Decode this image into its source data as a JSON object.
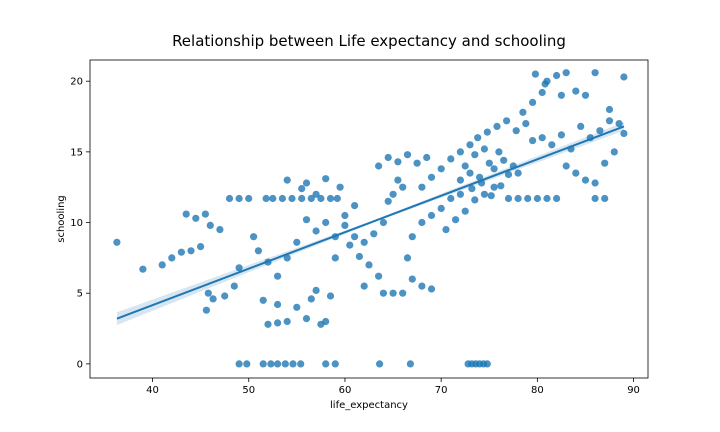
{
  "chart_data": {
    "type": "scatter",
    "title": "Relationship between Life expectancy and schooling",
    "xlabel": "life_expectancy",
    "ylabel": "schooling",
    "xlim": [
      33.5,
      91.5
    ],
    "ylim": [
      -1.0,
      21.5
    ],
    "xticks": [
      40,
      50,
      60,
      70,
      80,
      90
    ],
    "yticks": [
      0,
      5,
      10,
      15,
      20
    ],
    "grid": false,
    "legend": "none",
    "point_color": "#1f77b4",
    "point_opacity": 0.8,
    "regression": {
      "x": [
        36.3,
        89.0
      ],
      "y": [
        3.2,
        16.8
      ],
      "ci_halfwidth_start": 0.45,
      "ci_halfwidth_mid": 0.08,
      "ci_halfwidth_end": 0.3,
      "color": "#1f77b4"
    },
    "points": [
      [
        36.3,
        8.6
      ],
      [
        39.0,
        6.7
      ],
      [
        41.0,
        7.0
      ],
      [
        42.0,
        7.5
      ],
      [
        43.0,
        7.9
      ],
      [
        44.0,
        8.0
      ],
      [
        43.5,
        10.6
      ],
      [
        44.5,
        10.3
      ],
      [
        45.5,
        10.6
      ],
      [
        46.0,
        9.8
      ],
      [
        47.0,
        9.5
      ],
      [
        45.0,
        8.3
      ],
      [
        45.8,
        5.0
      ],
      [
        45.6,
        3.8
      ],
      [
        46.3,
        4.6
      ],
      [
        47.5,
        4.8
      ],
      [
        48.5,
        5.5
      ],
      [
        49.0,
        6.8
      ],
      [
        48.0,
        11.7
      ],
      [
        49.0,
        11.7
      ],
      [
        50.0,
        11.7
      ],
      [
        51.8,
        11.7
      ],
      [
        52.5,
        11.7
      ],
      [
        53.5,
        11.7
      ],
      [
        54.5,
        11.7
      ],
      [
        55.5,
        11.7
      ],
      [
        56.5,
        11.7
      ],
      [
        57.5,
        11.7
      ],
      [
        58.5,
        11.7
      ],
      [
        59.2,
        11.7
      ],
      [
        50.5,
        9.0
      ],
      [
        51.0,
        8.0
      ],
      [
        52.0,
        7.2
      ],
      [
        53.0,
        6.2
      ],
      [
        54.0,
        7.5
      ],
      [
        55.0,
        8.6
      ],
      [
        52.0,
        2.8
      ],
      [
        53.0,
        2.9
      ],
      [
        54.0,
        3.0
      ],
      [
        56.0,
        3.2
      ],
      [
        57.5,
        2.8
      ],
      [
        58.0,
        3.0
      ],
      [
        51.5,
        4.5
      ],
      [
        53.0,
        4.2
      ],
      [
        55.0,
        4.0
      ],
      [
        56.5,
        4.6
      ],
      [
        57.0,
        5.2
      ],
      [
        58.5,
        4.8
      ],
      [
        54.0,
        13.0
      ],
      [
        56.0,
        12.8
      ],
      [
        58.0,
        13.1
      ],
      [
        59.5,
        12.5
      ],
      [
        57.0,
        12.0
      ],
      [
        55.5,
        12.4
      ],
      [
        56.0,
        10.2
      ],
      [
        57.0,
        9.4
      ],
      [
        58.0,
        10.0
      ],
      [
        59.0,
        9.0
      ],
      [
        60.0,
        10.5
      ],
      [
        61.0,
        11.2
      ],
      [
        60.5,
        8.4
      ],
      [
        61.5,
        7.6
      ],
      [
        62.5,
        7.0
      ],
      [
        63.5,
        6.2
      ],
      [
        62.0,
        5.5
      ],
      [
        64.0,
        5.0
      ],
      [
        63.0,
        9.2
      ],
      [
        64.0,
        10.0
      ],
      [
        64.5,
        11.5
      ],
      [
        65.0,
        12.0
      ],
      [
        65.5,
        13.0
      ],
      [
        66.0,
        12.5
      ],
      [
        63.5,
        14.0
      ],
      [
        64.5,
        14.6
      ],
      [
        65.5,
        14.3
      ],
      [
        66.5,
        14.8
      ],
      [
        67.5,
        14.2
      ],
      [
        68.5,
        14.6
      ],
      [
        65.0,
        5.0
      ],
      [
        66.0,
        5.0
      ],
      [
        67.0,
        6.0
      ],
      [
        68.0,
        5.5
      ],
      [
        69.0,
        5.3
      ],
      [
        66.5,
        7.5
      ],
      [
        67.0,
        9.0
      ],
      [
        68.0,
        10.0
      ],
      [
        69.0,
        10.5
      ],
      [
        70.0,
        11.0
      ],
      [
        71.0,
        11.7
      ],
      [
        72.0,
        12.0
      ],
      [
        68.0,
        12.5
      ],
      [
        69.0,
        13.2
      ],
      [
        70.0,
        13.8
      ],
      [
        71.0,
        14.5
      ],
      [
        72.0,
        15.0
      ],
      [
        73.0,
        15.5
      ],
      [
        70.5,
        9.5
      ],
      [
        71.5,
        10.2
      ],
      [
        72.5,
        10.8
      ],
      [
        73.5,
        11.6
      ],
      [
        74.5,
        12.0
      ],
      [
        75.5,
        12.5
      ],
      [
        72.0,
        13.0
      ],
      [
        72.5,
        14.0
      ],
      [
        73.0,
        13.5
      ],
      [
        73.5,
        14.8
      ],
      [
        74.0,
        13.2
      ],
      [
        74.5,
        15.2
      ],
      [
        75.0,
        14.2
      ],
      [
        75.5,
        13.8
      ],
      [
        76.0,
        15.0
      ],
      [
        76.5,
        14.4
      ],
      [
        73.2,
        12.4
      ],
      [
        74.2,
        12.8
      ],
      [
        75.2,
        11.9
      ],
      [
        76.2,
        12.6
      ],
      [
        77.0,
        13.4
      ],
      [
        77.5,
        14.0
      ],
      [
        78.0,
        13.5
      ],
      [
        73.8,
        16.0
      ],
      [
        74.8,
        16.4
      ],
      [
        75.8,
        16.8
      ],
      [
        76.8,
        17.2
      ],
      [
        77.8,
        16.5
      ],
      [
        78.8,
        17.0
      ],
      [
        79.5,
        15.8
      ],
      [
        77.0,
        11.7
      ],
      [
        78.0,
        11.7
      ],
      [
        79.0,
        11.7
      ],
      [
        80.0,
        11.7
      ],
      [
        81.0,
        11.7
      ],
      [
        82.0,
        11.7
      ],
      [
        78.5,
        17.8
      ],
      [
        79.5,
        18.5
      ],
      [
        80.5,
        19.2
      ],
      [
        81.0,
        20.0
      ],
      [
        82.0,
        20.4
      ],
      [
        83.0,
        20.6
      ],
      [
        79.8,
        20.5
      ],
      [
        80.8,
        19.8
      ],
      [
        82.5,
        19.0
      ],
      [
        84.0,
        19.3
      ],
      [
        85.0,
        19.0
      ],
      [
        86.0,
        20.6
      ],
      [
        80.5,
        16.0
      ],
      [
        81.5,
        15.5
      ],
      [
        82.5,
        16.2
      ],
      [
        83.5,
        15.2
      ],
      [
        84.5,
        16.8
      ],
      [
        85.5,
        16.0
      ],
      [
        86.5,
        16.5
      ],
      [
        87.5,
        17.2
      ],
      [
        88.5,
        17.0
      ],
      [
        89.0,
        16.3
      ],
      [
        89.0,
        20.3
      ],
      [
        87.5,
        18.0
      ],
      [
        83.0,
        14.0
      ],
      [
        84.0,
        13.5
      ],
      [
        85.0,
        13.0
      ],
      [
        86.0,
        12.8
      ],
      [
        87.0,
        14.2
      ],
      [
        88.0,
        15.0
      ],
      [
        86.0,
        11.7
      ],
      [
        87.0,
        11.7
      ],
      [
        60.0,
        9.8
      ],
      [
        61.0,
        9.0
      ],
      [
        62.0,
        8.6
      ],
      [
        59.0,
        7.5
      ],
      [
        49.0,
        0.0
      ],
      [
        49.8,
        0.0
      ],
      [
        51.5,
        0.0
      ],
      [
        52.3,
        0.0
      ],
      [
        53.0,
        0.0
      ],
      [
        53.8,
        0.0
      ],
      [
        54.6,
        0.0
      ],
      [
        55.4,
        0.0
      ],
      [
        58.0,
        0.0
      ],
      [
        59.0,
        0.0
      ],
      [
        63.6,
        0.0
      ],
      [
        66.8,
        0.0
      ],
      [
        72.8,
        0.0
      ],
      [
        73.2,
        0.0
      ],
      [
        73.6,
        0.0
      ],
      [
        74.0,
        0.0
      ],
      [
        74.4,
        0.0
      ],
      [
        74.8,
        0.0
      ]
    ]
  }
}
